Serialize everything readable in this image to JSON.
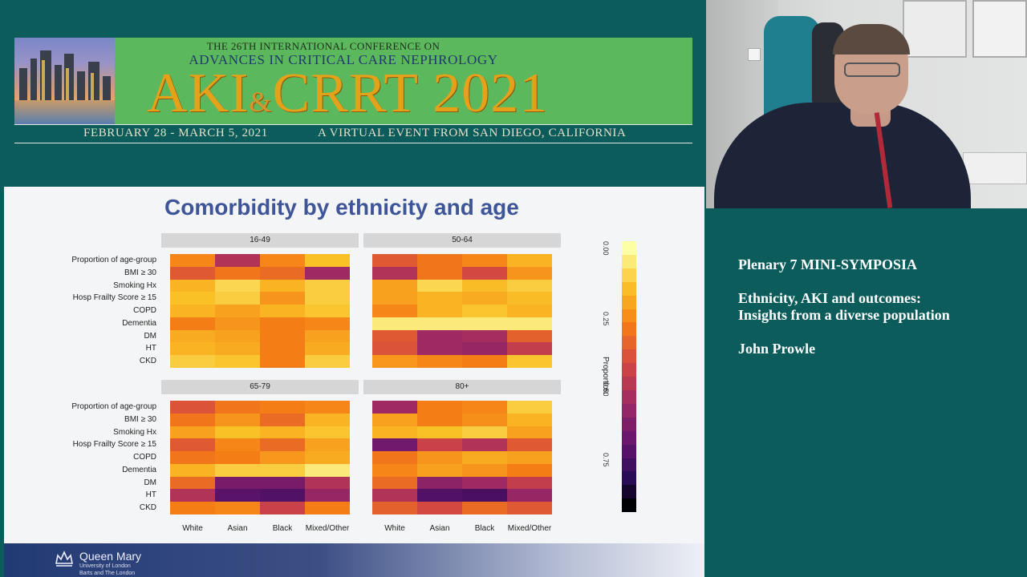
{
  "banner": {
    "line1": "THE 26TH INTERNATIONAL CONFERENCE ON",
    "line2": "ADVANCES IN CRITICAL CARE NEPHROLOGY",
    "title_part1": "AKI",
    "title_amp": "&",
    "title_part2": "CRRT 2021",
    "dates": "FEBRUARY 28 - MARCH 5, 2021",
    "virtual": "A VIRTUAL EVENT FROM SAN DIEGO, CALIFORNIA"
  },
  "slide": {
    "title": "Comorbidity by ethnicity and age",
    "row_labels": [
      "Proportion of age-group",
      "BMI ≥ 30",
      "Smoking Hx",
      "Hosp Frailty Score ≥ 15",
      "COPD",
      "Dementia",
      "DM",
      "HT",
      "CKD"
    ],
    "col_labels": [
      "White",
      "Asian",
      "Black",
      "Mixed/Other"
    ],
    "facets": [
      {
        "label": "16-49",
        "cells": [
          [
            0.28,
            0.55,
            0.28,
            0.15
          ],
          [
            0.4,
            0.32,
            0.35,
            0.6
          ],
          [
            0.18,
            0.1,
            0.18,
            0.12
          ],
          [
            0.15,
            0.12,
            0.25,
            0.12
          ],
          [
            0.18,
            0.22,
            0.18,
            0.14
          ],
          [
            0.3,
            0.25,
            0.3,
            0.28
          ],
          [
            0.2,
            0.22,
            0.3,
            0.22
          ],
          [
            0.18,
            0.2,
            0.3,
            0.2
          ],
          [
            0.12,
            0.14,
            0.3,
            0.12
          ]
        ]
      },
      {
        "label": "50-64",
        "cells": [
          [
            0.4,
            0.32,
            0.28,
            0.18
          ],
          [
            0.55,
            0.32,
            0.45,
            0.25
          ],
          [
            0.22,
            0.1,
            0.16,
            0.12
          ],
          [
            0.22,
            0.18,
            0.2,
            0.16
          ],
          [
            0.28,
            0.18,
            0.14,
            0.18
          ],
          [
            0.05,
            0.05,
            0.05,
            0.05
          ],
          [
            0.4,
            0.6,
            0.58,
            0.38
          ],
          [
            0.42,
            0.6,
            0.62,
            0.5
          ],
          [
            0.24,
            0.28,
            0.3,
            0.14
          ]
        ]
      },
      {
        "label": "65-79",
        "cells": [
          [
            0.42,
            0.32,
            0.3,
            0.28
          ],
          [
            0.32,
            0.25,
            0.35,
            0.18
          ],
          [
            0.22,
            0.15,
            0.18,
            0.14
          ],
          [
            0.4,
            0.28,
            0.35,
            0.22
          ],
          [
            0.32,
            0.3,
            0.24,
            0.2
          ],
          [
            0.18,
            0.12,
            0.12,
            0.05
          ],
          [
            0.35,
            0.7,
            0.7,
            0.55
          ],
          [
            0.55,
            0.78,
            0.8,
            0.62
          ],
          [
            0.3,
            0.28,
            0.48,
            0.3
          ]
        ]
      },
      {
        "label": "80+",
        "cells": [
          [
            0.6,
            0.3,
            0.28,
            0.12
          ],
          [
            0.22,
            0.3,
            0.26,
            0.18
          ],
          [
            0.18,
            0.15,
            0.12,
            0.22
          ],
          [
            0.72,
            0.48,
            0.55,
            0.4
          ],
          [
            0.32,
            0.25,
            0.2,
            0.22
          ],
          [
            0.28,
            0.22,
            0.25,
            0.3
          ],
          [
            0.35,
            0.65,
            0.6,
            0.5
          ],
          [
            0.55,
            0.8,
            0.82,
            0.62
          ],
          [
            0.38,
            0.45,
            0.35,
            0.4
          ]
        ]
      }
    ],
    "colorbar": {
      "label": "Proportion",
      "ticks": [
        "0.00",
        "0.25",
        "0.50",
        "0.75"
      ]
    },
    "footer": {
      "org": "Queen Mary",
      "sub1": "University of London",
      "sub2": "Barts and The London"
    }
  },
  "session": {
    "line1": "Plenary 7 MINI-SYMPOSIA",
    "line2": "Ethnicity, AKI and outcomes:",
    "line3": "Insights from a diverse population",
    "speaker": "John Prowle"
  },
  "colors": {
    "background": "#0c5c5c",
    "banner_green": "#5cb85c",
    "title_gold": "#e3a21a",
    "slide_title": "#3e5598"
  }
}
